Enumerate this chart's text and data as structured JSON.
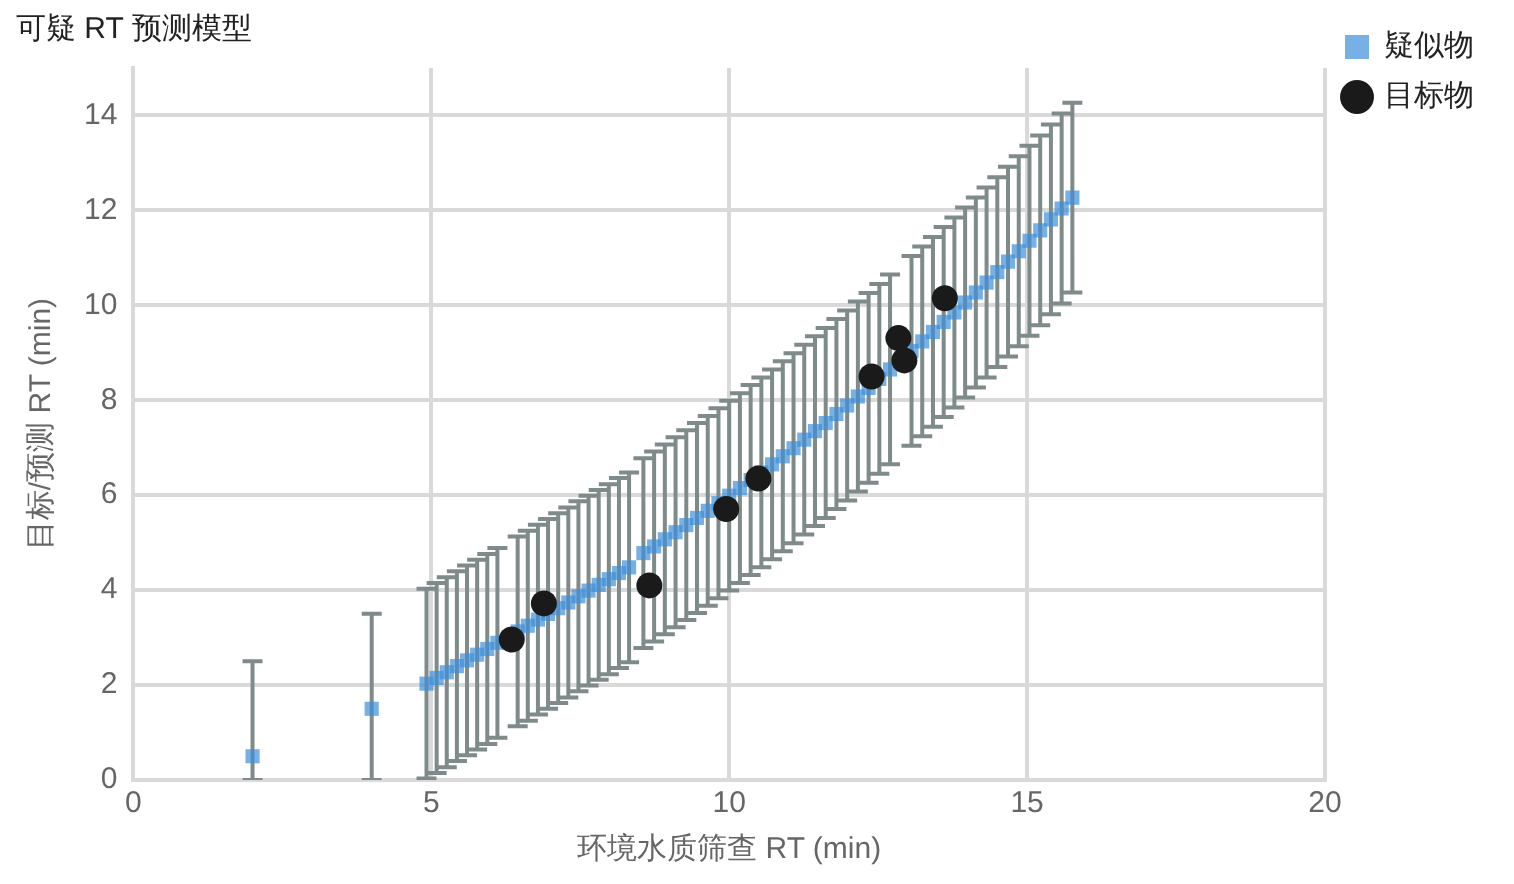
{
  "chart_data": {
    "type": "scatter",
    "title": "可疑 RT 预测模型",
    "xlabel": "环境水质筛查 RT (min)",
    "ylabel": "目标/预测 RT (min)",
    "xlim": [
      0,
      20
    ],
    "xticks": [
      0,
      5,
      10,
      15,
      20
    ],
    "ylim": [
      0,
      15
    ],
    "yticks": [
      0,
      2,
      4,
      6,
      8,
      10,
      12,
      14
    ],
    "grid": true,
    "legend": "top right",
    "series": [
      {
        "name": "疑似物",
        "color": "#3d8fd8",
        "marker": "square",
        "x": [
          2,
          4,
          4.92,
          5.09,
          5.26,
          5.43,
          5.6,
          5.77,
          5.94,
          6.11,
          6.28,
          6.45,
          6.62,
          6.79,
          6.96,
          7.13,
          7.3,
          7.47,
          7.64,
          7.81,
          7.98,
          8.15,
          8.32,
          8.56,
          8.74,
          8.92,
          9.1,
          9.28,
          9.46,
          9.64,
          9.82,
          10.0,
          10.18,
          10.36,
          10.54,
          10.72,
          10.9,
          11.08,
          11.26,
          11.44,
          11.62,
          11.8,
          11.98,
          12.16,
          12.34,
          12.52,
          12.7,
          12.88,
          13.06,
          13.24,
          13.42,
          13.6,
          13.78,
          13.96,
          14.14,
          14.32,
          14.5,
          14.68,
          14.86,
          15.04,
          15.22,
          15.4,
          15.58,
          15.76
        ],
        "values": [
          0.5,
          1.5,
          2.03,
          2.15,
          2.27,
          2.4,
          2.52,
          2.64,
          2.76,
          2.89,
          null,
          3.13,
          3.25,
          3.38,
          3.5,
          3.62,
          3.74,
          3.87,
          3.99,
          4.11,
          4.23,
          4.36,
          4.48,
          4.78,
          4.92,
          5.07,
          5.22,
          5.37,
          5.52,
          5.67,
          5.83,
          5.99,
          6.15,
          6.32,
          6.48,
          6.65,
          6.82,
          6.99,
          7.17,
          7.35,
          7.52,
          7.71,
          7.89,
          8.08,
          8.26,
          8.45,
          8.65,
          null,
          9.04,
          9.24,
          9.44,
          9.65,
          9.85,
          10.06,
          10.27,
          10.48,
          10.7,
          10.92,
          11.14,
          11.36,
          11.58,
          11.81,
          12.04,
          12.27
        ],
        "errors": [
          [
            0,
            2.5
          ],
          [
            0,
            3.5
          ],
          2,
          2,
          2,
          2,
          2,
          2,
          2,
          2,
          null,
          2,
          2,
          2,
          2,
          2,
          2,
          2,
          2,
          2,
          2,
          2,
          2,
          2,
          2,
          2,
          2,
          2,
          2,
          2,
          2,
          2,
          2,
          2,
          2,
          2,
          2,
          2,
          2,
          2,
          2,
          2,
          2,
          2,
          2,
          2,
          2,
          null,
          2,
          2,
          2,
          2,
          2,
          2,
          2,
          2,
          2,
          2,
          2,
          2,
          2,
          2,
          2,
          2
        ]
      },
      {
        "name": "目标物",
        "color": "#1a1a1a",
        "marker": "circle",
        "x": [
          6.35,
          6.89,
          8.66,
          9.95,
          10.49,
          12.39,
          12.84,
          12.94,
          13.62
        ],
        "values": [
          2.96,
          3.72,
          4.1,
          5.71,
          6.35,
          8.5,
          9.31,
          8.84,
          10.15
        ]
      }
    ]
  }
}
